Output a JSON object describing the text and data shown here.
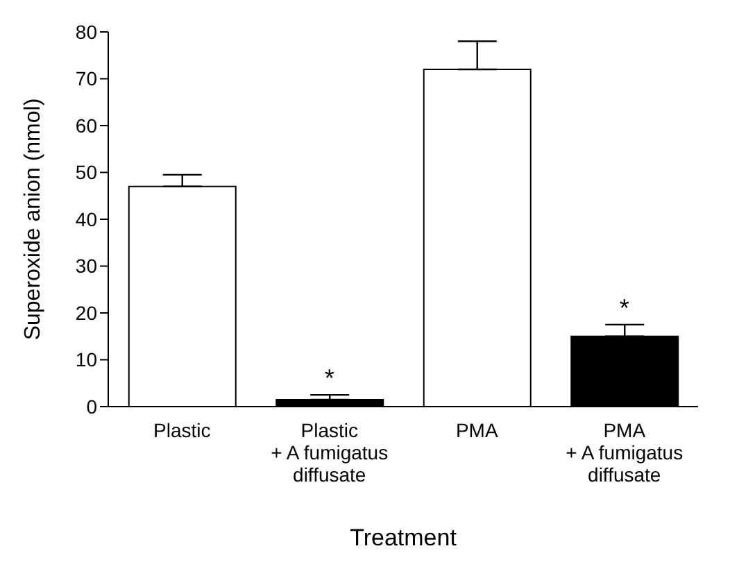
{
  "chart_data": {
    "type": "bar",
    "xlabel": "Treatment",
    "ylabel": "Superoxide anion (nmol)",
    "categories": [
      "Plastic",
      "Plastic\n+ A fumigatus\ndiffusate",
      "PMA",
      "PMA\n+ A fumigatus\ndiffusate"
    ],
    "values": [
      47,
      1.5,
      72,
      15
    ],
    "colors": [
      "#ffffff",
      "#000000",
      "#ffffff",
      "#000000"
    ],
    "errors": [
      [
        47,
        49.5
      ],
      [
        1.5,
        2.5
      ],
      [
        72,
        78
      ],
      [
        15,
        17.5
      ]
    ],
    "ylim": [
      0,
      80
    ],
    "yticks": [
      0,
      10,
      20,
      30,
      40,
      50,
      60,
      70,
      80
    ],
    "annotations": [
      {
        "text": "*",
        "x": "Plastic\n+ A fumigatus\ndiffusate",
        "y": 2.5
      },
      {
        "text": "*",
        "x": "PMA\n+ A fumigatus\ndiffusate",
        "y": 17.5
      }
    ]
  }
}
